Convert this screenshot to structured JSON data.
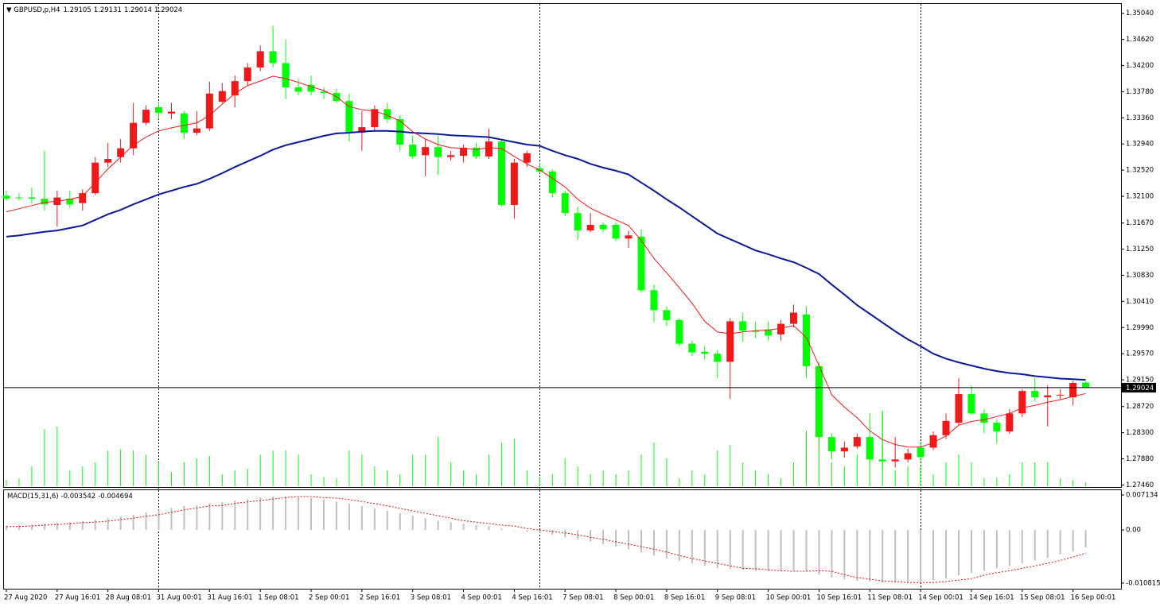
{
  "chart_data": [
    {
      "type": "candlestick",
      "title": "GBPUSD,p,H4",
      "categories": [
        "27 Aug 2020",
        null,
        null,
        null,
        "27 Aug 16:01",
        null,
        null,
        null,
        "28 Aug 08:01",
        null,
        null,
        null,
        "31 Aug 00:01",
        null,
        null,
        null,
        "31 Aug 16:01",
        null,
        null,
        null,
        "1 Sep 08:01",
        null,
        null,
        null,
        "2 Sep 00:01",
        null,
        null,
        null,
        "2 Sep 16:01",
        null,
        null,
        null,
        "3 Sep 08:01",
        null,
        null,
        null,
        "4 Sep 00:01",
        null,
        null,
        null,
        "4 Sep 16:01",
        null,
        null,
        null,
        "7 Sep 08:01",
        null,
        null,
        null,
        "8 Sep 00:01",
        null,
        null,
        null,
        "8 Sep 16:01",
        null,
        null,
        null,
        "9 Sep 08:01",
        null,
        null,
        null,
        "10 Sep 00:01",
        null,
        null,
        null,
        "10 Sep 16:01",
        null,
        null,
        null,
        "11 Sep 08:01",
        null,
        null,
        null,
        "14 Sep 00:01",
        null,
        null,
        null,
        "14 Sep 16:01",
        null,
        null,
        null,
        "15 Sep 08:01",
        null,
        null,
        null,
        "16 Sep 00:01",
        null
      ],
      "open": [
        1.3211,
        1.3208,
        1.3208,
        1.3206,
        1.3196,
        1.3206,
        1.3199,
        1.3215,
        1.3264,
        1.3273,
        1.3287,
        1.3328,
        1.3353,
        1.3343,
        1.3343,
        1.3312,
        1.3319,
        1.3362,
        1.3372,
        1.3395,
        1.3417,
        1.3443,
        1.3424,
        1.3385,
        1.3389,
        1.3378,
        1.3376,
        1.3363,
        1.3312,
        1.3321,
        1.335,
        1.3334,
        1.3293,
        1.3276,
        1.3289,
        1.3273,
        1.3275,
        1.3288,
        1.3274,
        1.3298,
        1.3196,
        1.3264,
        1.3255,
        1.325,
        1.3215,
        1.3183,
        1.3155,
        1.3164,
        1.3164,
        1.3142,
        1.3145,
        1.3059,
        1.3027,
        1.3011,
        1.2973,
        1.296,
        1.2957,
        1.2944,
        1.3009,
        1.2994,
        1.2996,
        1.2988,
        1.3005,
        1.302,
        1.2937,
        1.2823,
        1.28,
        1.2808,
        1.2823,
        1.2787,
        1.2784,
        1.2787,
        1.2806,
        1.2806,
        1.2826,
        1.2846,
        1.2892,
        1.2861,
        1.2846,
        1.2832,
        1.2861,
        1.2897,
        1.2887,
        1.289,
        1.2887,
        1.29105
      ],
      "high": [
        1.3219,
        1.3215,
        1.3224,
        1.3283,
        1.3219,
        1.3219,
        1.3221,
        1.3273,
        1.3296,
        1.3302,
        1.336,
        1.3356,
        1.3362,
        1.336,
        1.3347,
        1.3347,
        1.3394,
        1.3392,
        1.3404,
        1.3424,
        1.3452,
        1.3484,
        1.3462,
        1.3398,
        1.3404,
        1.3385,
        1.3383,
        1.3375,
        1.3347,
        1.3356,
        1.336,
        1.334,
        1.3308,
        1.3302,
        1.3308,
        1.3283,
        1.3293,
        1.3296,
        1.3319,
        1.3302,
        1.327,
        1.3283,
        1.3264,
        1.3253,
        1.3219,
        1.3193,
        1.3183,
        1.3168,
        1.3168,
        1.3155,
        1.3157,
        1.3068,
        1.3033,
        1.3014,
        1.2978,
        1.2969,
        1.2963,
        1.3014,
        1.3023,
        1.3008,
        1.3008,
        1.3011,
        1.3036,
        1.3033,
        1.2944,
        1.2829,
        1.2816,
        1.2829,
        1.2861,
        1.2864,
        1.2823,
        1.2804,
        1.2816,
        1.2832,
        1.2861,
        1.2918,
        1.2906,
        1.2868,
        1.2851,
        1.2868,
        1.29,
        1.2918,
        1.2906,
        1.29,
        1.2913,
        1.29131
      ],
      "low": [
        1.3203,
        1.3203,
        1.3198,
        1.3187,
        1.3161,
        1.3191,
        1.3187,
        1.3212,
        1.3257,
        1.3264,
        1.3276,
        1.3324,
        1.3334,
        1.3334,
        1.3302,
        1.3308,
        1.3315,
        1.336,
        1.3353,
        1.3388,
        1.3411,
        1.3417,
        1.3366,
        1.3372,
        1.3372,
        1.3366,
        1.336,
        1.3298,
        1.3283,
        1.3315,
        1.3328,
        1.3283,
        1.327,
        1.3242,
        1.3244,
        1.3267,
        1.3264,
        1.327,
        1.327,
        1.3193,
        1.3174,
        1.3257,
        1.3247,
        1.3208,
        1.3178,
        1.314,
        1.3152,
        1.3152,
        1.3138,
        1.3127,
        1.3055,
        1.3008,
        1.3001,
        1.2969,
        1.2953,
        1.2948,
        1.2918,
        1.2884,
        1.2976,
        1.2982,
        1.2978,
        1.2978,
        1.2999,
        1.2918,
        1.281,
        1.2787,
        1.279,
        1.2804,
        1.2781,
        1.2772,
        1.2774,
        1.2782,
        1.2784,
        1.2802,
        1.282,
        1.2842,
        1.2859,
        1.2829,
        1.2813,
        1.2828,
        1.2855,
        1.288,
        1.284,
        1.2884,
        1.2874,
        1.29014
      ],
      "close": [
        1.3206,
        1.3207,
        1.3206,
        1.3197,
        1.3208,
        1.3197,
        1.3215,
        1.3264,
        1.327,
        1.3287,
        1.3328,
        1.3349,
        1.3344,
        1.3346,
        1.3312,
        1.3319,
        1.3375,
        1.3379,
        1.3395,
        1.3417,
        1.3443,
        1.3424,
        1.3385,
        1.3378,
        1.3378,
        1.3376,
        1.3363,
        1.3312,
        1.3321,
        1.335,
        1.3334,
        1.3293,
        1.3274,
        1.3289,
        1.3273,
        1.3276,
        1.3288,
        1.3274,
        1.3298,
        1.3196,
        1.3264,
        1.3279,
        1.325,
        1.3215,
        1.3183,
        1.3155,
        1.3164,
        1.3157,
        1.3142,
        1.3147,
        1.3059,
        1.3027,
        1.3011,
        1.2973,
        1.2959,
        1.2957,
        1.2944,
        1.3009,
        1.2994,
        1.2992,
        1.2986,
        1.3005,
        1.3023,
        1.2937,
        1.2823,
        1.28,
        1.2806,
        1.2823,
        1.2787,
        1.2784,
        1.2787,
        1.2797,
        1.2791,
        1.2826,
        1.2849,
        1.2892,
        1.2861,
        1.2846,
        1.2832,
        1.2861,
        1.2897,
        1.2887,
        1.289,
        1.2891,
        1.291,
        1.29024
      ],
      "up_color": "#f01818",
      "down_color": "#00ff00",
      "moving_averages": [
        {
          "color": "#0a1a9a",
          "values": [
            1.3145,
            1.3147,
            1.315,
            1.3153,
            1.3155,
            1.3159,
            1.3163,
            1.3172,
            1.3181,
            1.3188,
            1.3197,
            1.3205,
            1.3213,
            1.3219,
            1.3225,
            1.323,
            1.3238,
            1.3247,
            1.3257,
            1.3266,
            1.3275,
            1.3285,
            1.3292,
            1.3297,
            1.3302,
            1.3307,
            1.3311,
            1.3312,
            1.3314,
            1.3315,
            1.3315,
            1.3314,
            1.3312,
            1.3311,
            1.331,
            1.3308,
            1.3307,
            1.3306,
            1.3305,
            1.3301,
            1.3297,
            1.3293,
            1.3291,
            1.3283,
            1.3276,
            1.327,
            1.3262,
            1.3256,
            1.3251,
            1.3245,
            1.3232,
            1.3219,
            1.3205,
            1.3192,
            1.3178,
            1.3164,
            1.315,
            1.3141,
            1.3132,
            1.3123,
            1.3117,
            1.311,
            1.3104,
            1.3095,
            1.3085,
            1.3068,
            1.3052,
            1.3035,
            1.3021,
            1.3007,
            1.2993,
            1.298,
            1.2969,
            1.2957,
            1.2949,
            1.2943,
            1.2938,
            1.2933,
            1.2929,
            1.2926,
            1.2924,
            1.2921,
            1.2919,
            1.2917,
            1.2916,
            1.2915
          ]
        },
        {
          "color": "#f01818",
          "values": [
            1.3185,
            1.319,
            1.3195,
            1.32,
            1.3202,
            1.3205,
            1.321,
            1.3232,
            1.3254,
            1.3273,
            1.3292,
            1.3305,
            1.3315,
            1.332,
            1.3324,
            1.3328,
            1.334,
            1.3358,
            1.3375,
            1.3388,
            1.3395,
            1.3403,
            1.3399,
            1.3393,
            1.3386,
            1.338,
            1.337,
            1.3354,
            1.3349,
            1.3347,
            1.334,
            1.3331,
            1.3314,
            1.3302,
            1.3293,
            1.3288,
            1.3287,
            1.3285,
            1.3288,
            1.3287,
            1.3274,
            1.3262,
            1.3252,
            1.3239,
            1.3225,
            1.3205,
            1.3191,
            1.3181,
            1.3172,
            1.3163,
            1.3139,
            1.311,
            1.3087,
            1.3063,
            1.3038,
            1.3009,
            1.2992,
            1.2989,
            1.2992,
            1.2994,
            1.2995,
            1.2998,
            1.3002,
            1.2983,
            1.2938,
            1.2891,
            1.2871,
            1.2854,
            1.2833,
            1.2819,
            1.2811,
            1.2807,
            1.2807,
            1.2814,
            1.2825,
            1.2842,
            1.2848,
            1.2851,
            1.2856,
            1.2861,
            1.287,
            1.2874,
            1.2879,
            1.2883,
            1.2888,
            1.2893
          ]
        }
      ],
      "volume": {
        "color": "#00ff00",
        "values": [
          8,
          10,
          25,
          72,
          75,
          20,
          25,
          30,
          45,
          47,
          45,
          40,
          30,
          18,
          30,
          35,
          38,
          15,
          20,
          22,
          40,
          45,
          45,
          40,
          15,
          12,
          10,
          45,
          40,
          25,
          20,
          15,
          40,
          40,
          62,
          30,
          20,
          15,
          40,
          55,
          60,
          20,
          12,
          15,
          35,
          25,
          15,
          20,
          15,
          20,
          40,
          55,
          35,
          10,
          20,
          15,
          45,
          52,
          30,
          20,
          15,
          10,
          30,
          70,
          100,
          30,
          25,
          40,
          60,
          95,
          20,
          25,
          25,
          15,
          30,
          40,
          30,
          10,
          10,
          15,
          30,
          30,
          30,
          10,
          8,
          5
        ]
      },
      "ylim": [
        1.2744,
        1.3519
      ],
      "yticks": [
        {
          "value": 1.3504,
          "label": "1.35040"
        },
        {
          "value": 1.3462,
          "label": "1.34620"
        },
        {
          "value": 1.342,
          "label": "1.34200"
        },
        {
          "value": 1.3378,
          "label": "1.33780"
        },
        {
          "value": 1.3336,
          "label": "1.33360"
        },
        {
          "value": 1.3294,
          "label": "1.32940"
        },
        {
          "value": 1.3252,
          "label": "1.32520"
        },
        {
          "value": 1.321,
          "label": "1.32100"
        },
        {
          "value": 1.3167,
          "label": "1.31670"
        },
        {
          "value": 1.3125,
          "label": "1.31250"
        },
        {
          "value": 1.3083,
          "label": "1.30830"
        },
        {
          "value": 1.3041,
          "label": "1.30410"
        },
        {
          "value": 1.2999,
          "label": "1.29990"
        },
        {
          "value": 1.2957,
          "label": "1.29570"
        },
        {
          "value": 1.2915,
          "label": "1.29150"
        },
        {
          "value": 1.2872,
          "label": "1.28720"
        },
        {
          "value": 1.283,
          "label": "1.28300"
        },
        {
          "value": 1.2788,
          "label": "1.27880"
        },
        {
          "value": 1.2746,
          "label": "1.27460"
        }
      ]
    },
    {
      "type": "macd",
      "title": "MACD(15,31,6)",
      "series": [
        {
          "color": "#c0c0c0",
          "values": [
            0.0008,
            0.001,
            0.0011,
            0.0013,
            0.0015,
            0.0016,
            0.0018,
            0.0021,
            0.0024,
            0.0028,
            0.0031,
            0.0036,
            0.0041,
            0.0045,
            0.0049,
            0.005,
            0.0054,
            0.0057,
            0.006,
            0.0063,
            0.0066,
            0.0068,
            0.0068,
            0.0066,
            0.0065,
            0.0062,
            0.0058,
            0.0054,
            0.0049,
            0.0044,
            0.0039,
            0.0034,
            0.0029,
            0.0024,
            0.0019,
            0.0016,
            0.0013,
            0.001,
            0.0008,
            0.0003,
            0,
            -0.0003,
            -0.0006,
            -0.001,
            -0.0015,
            -0.0019,
            -0.0024,
            -0.0029,
            -0.0034,
            -0.0039,
            -0.0045,
            -0.0052,
            -0.0058,
            -0.0063,
            -0.0068,
            -0.0073,
            -0.0078,
            -0.0079,
            -0.0081,
            -0.0083,
            -0.0084,
            -0.0084,
            -0.0083,
            -0.0084,
            -0.0091,
            -0.0097,
            -0.01,
            -0.0104,
            -0.0105,
            -0.0107,
            -0.0107,
            -0.0107,
            -0.0105,
            -0.0102,
            -0.0099,
            -0.0092,
            -0.0087,
            -0.0083,
            -0.0078,
            -0.0073,
            -0.0068,
            -0.0062,
            -0.0057,
            -0.005,
            -0.0044,
            -0.003542
          ]
        },
        {
          "color": "#e01010",
          "values": [
            0.0007,
            0.0007,
            0.0008,
            0.001,
            0.0011,
            0.0013,
            0.0015,
            0.0016,
            0.0018,
            0.0021,
            0.0024,
            0.0028,
            0.0031,
            0.0036,
            0.0041,
            0.0045,
            0.0049,
            0.005,
            0.0054,
            0.0057,
            0.006,
            0.0063,
            0.0066,
            0.0068,
            0.0068,
            0.0066,
            0.0065,
            0.0062,
            0.0058,
            0.0054,
            0.0049,
            0.0044,
            0.0039,
            0.0034,
            0.0029,
            0.0024,
            0.0019,
            0.0016,
            0.0013,
            0.001,
            0.0008,
            0.0003,
            0,
            -0.0003,
            -0.0006,
            -0.001,
            -0.0015,
            -0.0019,
            -0.0024,
            -0.0029,
            -0.0034,
            -0.0039,
            -0.0045,
            -0.0052,
            -0.0058,
            -0.0063,
            -0.0068,
            -0.0073,
            -0.0078,
            -0.0079,
            -0.0081,
            -0.0083,
            -0.0084,
            -0.0084,
            -0.0083,
            -0.0084,
            -0.0091,
            -0.0097,
            -0.01,
            -0.0104,
            -0.0105,
            -0.0107,
            -0.0107,
            -0.0107,
            -0.0105,
            -0.0102,
            -0.0099,
            -0.0092,
            -0.0087,
            -0.0083,
            -0.0078,
            -0.0073,
            -0.0068,
            -0.0062,
            -0.0055,
            -0.004694
          ]
        }
      ],
      "ylim": [
        -0.0118,
        0.0081
      ],
      "yticks": [
        0.007134,
        {
          "value": 0,
          "label": "0.00"
        },
        -0.010815
      ]
    }
  ]
}
